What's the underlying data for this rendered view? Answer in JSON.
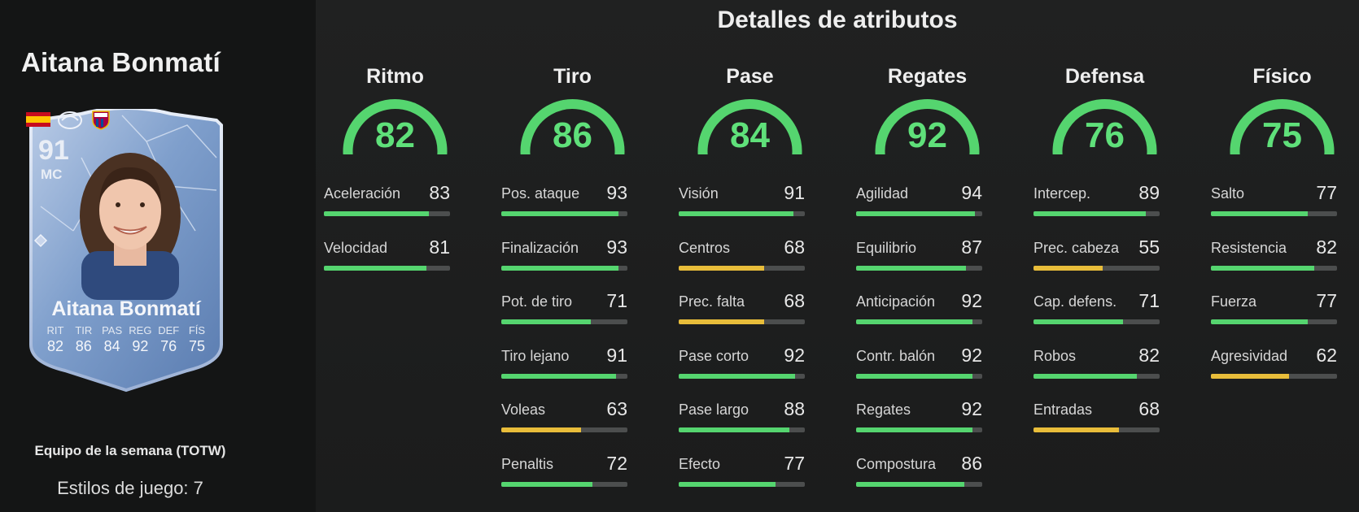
{
  "player": {
    "name": "Aitana Bonmatí",
    "card_type": "Equipo de la semana (TOTW)",
    "playstyles": "Estilos de juego: 7"
  },
  "card": {
    "rating": "91",
    "position": "MC",
    "name": "Aitana Bonmatí",
    "stats": [
      {
        "label": "RIT",
        "value": "82"
      },
      {
        "label": "TIR",
        "value": "86"
      },
      {
        "label": "PAS",
        "value": "84"
      },
      {
        "label": "REG",
        "value": "92"
      },
      {
        "label": "DEF",
        "value": "76"
      },
      {
        "label": "FÍS",
        "value": "75"
      }
    ],
    "icons": [
      "spain-flag-icon",
      "liga-f-logo",
      "fc-barcelona-crest-icon"
    ]
  },
  "main": {
    "title": "Detalles de atributos",
    "colors": {
      "high": "#55d56f",
      "mid": "#e8bd3a",
      "track": "#4c4e4e"
    },
    "categories": [
      {
        "name": "Ritmo",
        "value": 82,
        "stats": [
          {
            "label": "Aceleración",
            "value": 83
          },
          {
            "label": "Velocidad",
            "value": 81
          }
        ]
      },
      {
        "name": "Tiro",
        "value": 86,
        "stats": [
          {
            "label": "Pos. ataque",
            "value": 93
          },
          {
            "label": "Finalización",
            "value": 93
          },
          {
            "label": "Pot. de tiro",
            "value": 71
          },
          {
            "label": "Tiro lejano",
            "value": 91
          },
          {
            "label": "Voleas",
            "value": 63
          },
          {
            "label": "Penaltis",
            "value": 72
          }
        ]
      },
      {
        "name": "Pase",
        "value": 84,
        "stats": [
          {
            "label": "Visión",
            "value": 91
          },
          {
            "label": "Centros",
            "value": 68
          },
          {
            "label": "Prec. falta",
            "value": 68
          },
          {
            "label": "Pase corto",
            "value": 92
          },
          {
            "label": "Pase largo",
            "value": 88
          },
          {
            "label": "Efecto",
            "value": 77
          }
        ]
      },
      {
        "name": "Regates",
        "value": 92,
        "stats": [
          {
            "label": "Agilidad",
            "value": 94
          },
          {
            "label": "Equilibrio",
            "value": 87
          },
          {
            "label": "Anticipación",
            "value": 92
          },
          {
            "label": "Contr. balón",
            "value": 92
          },
          {
            "label": "Regates",
            "value": 92
          },
          {
            "label": "Compostura",
            "value": 86
          }
        ]
      },
      {
        "name": "Defensa",
        "value": 76,
        "stats": [
          {
            "label": "Intercep.",
            "value": 89
          },
          {
            "label": "Prec. cabeza",
            "value": 55
          },
          {
            "label": "Cap. defens.",
            "value": 71
          },
          {
            "label": "Robos",
            "value": 82
          },
          {
            "label": "Entradas",
            "value": 68
          }
        ]
      },
      {
        "name": "Físico",
        "value": 75,
        "stats": [
          {
            "label": "Salto",
            "value": 77
          },
          {
            "label": "Resistencia",
            "value": 82
          },
          {
            "label": "Fuerza",
            "value": 77
          },
          {
            "label": "Agresividad",
            "value": 62
          }
        ]
      }
    ]
  }
}
